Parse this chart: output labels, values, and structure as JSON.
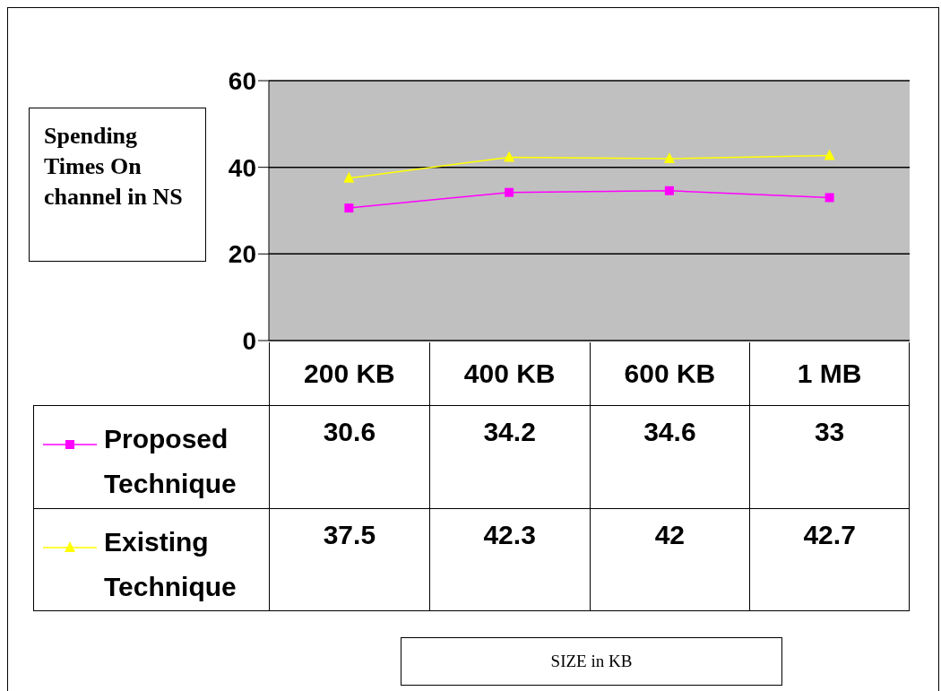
{
  "chart_data": {
    "type": "line",
    "ylabel": "Spending Times On channel in NS",
    "annotations": [
      "SIZE in KB"
    ],
    "categories": [
      "200 KB",
      "400 KB",
      "600 KB",
      "1 MB"
    ],
    "series": [
      {
        "name": "Proposed Technique",
        "color": "#ff00ff",
        "marker": "square",
        "values": [
          30.6,
          34.2,
          34.6,
          33
        ]
      },
      {
        "name": "Existing Technique",
        "color": "#ffff00",
        "marker": "triangle",
        "values": [
          37.5,
          42.3,
          42,
          42.7
        ]
      }
    ],
    "ylim": [
      0,
      60
    ],
    "yticks": [
      0,
      20,
      40,
      60
    ],
    "grid": "y",
    "legend": "bottom",
    "data_labels": true
  }
}
